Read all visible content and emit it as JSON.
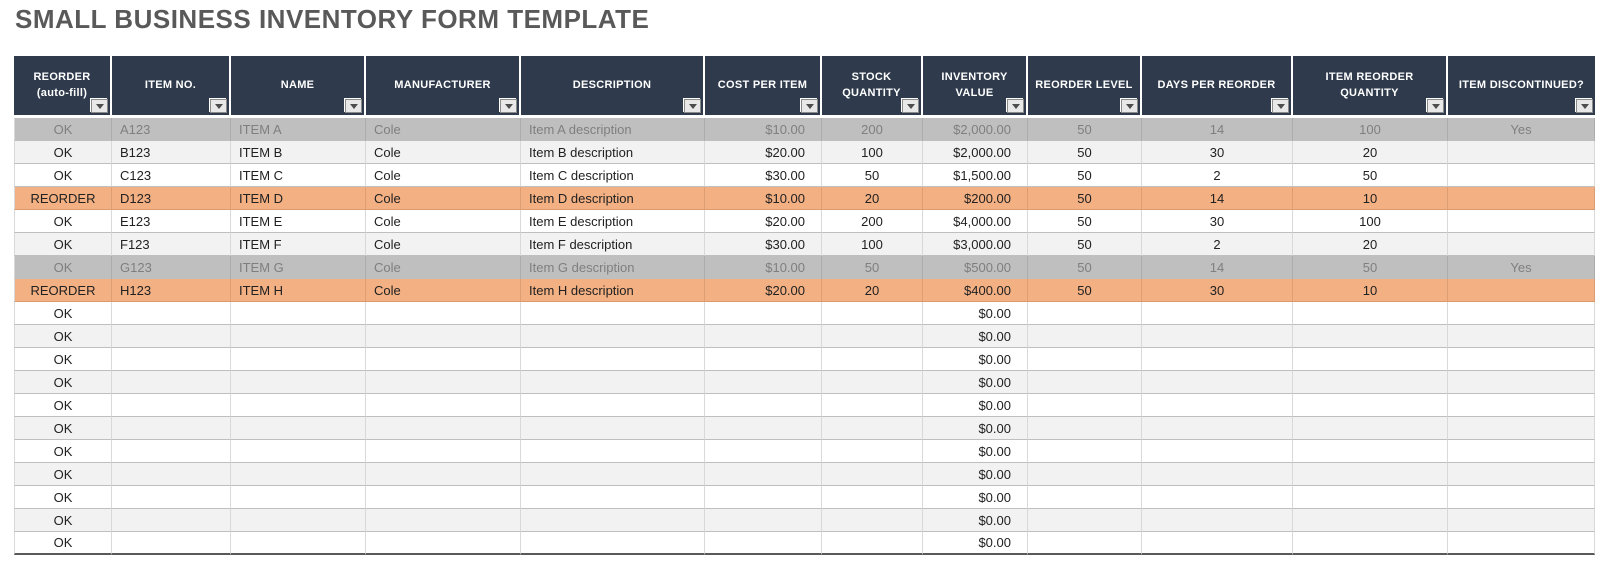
{
  "title": "SMALL BUSINESS INVENTORY FORM TEMPLATE",
  "colors": {
    "header_bg": "#2F3B4C",
    "header_text": "#FFFFFF",
    "row_alt": "#F2F2F2",
    "row_discontinued": "#BFBFBF",
    "text_discontinued": "#7F7F7F",
    "row_reorder": "#F3B083",
    "title_text": "#595959"
  },
  "icons": {
    "header_filter": "filter-dropdown-icon"
  },
  "table": {
    "columns": [
      {
        "key": "reorder",
        "label": "REORDER (auto-fill)"
      },
      {
        "key": "item_no",
        "label": "ITEM NO."
      },
      {
        "key": "name",
        "label": "NAME"
      },
      {
        "key": "manufacturer",
        "label": "MANUFACTURER"
      },
      {
        "key": "description",
        "label": "DESCRIPTION"
      },
      {
        "key": "cost_per_item",
        "label": "COST PER ITEM"
      },
      {
        "key": "stock_quantity",
        "label": "STOCK QUANTITY"
      },
      {
        "key": "inventory_value",
        "label": "INVENTORY VALUE"
      },
      {
        "key": "reorder_level",
        "label": "REORDER LEVEL"
      },
      {
        "key": "days_per_reorder",
        "label": "DAYS PER REORDER"
      },
      {
        "key": "item_reorder_quantity",
        "label": "ITEM REORDER QUANTITY"
      },
      {
        "key": "item_discontinued",
        "label": "ITEM DISCONTINUED?"
      }
    ],
    "rows": [
      {
        "state": "discontinued",
        "reorder": "OK",
        "item_no": "A123",
        "name": "ITEM A",
        "manufacturer": "Cole",
        "description": "Item A description",
        "cost_per_item": "$10.00",
        "stock_quantity": "200",
        "inventory_value": "$2,000.00",
        "reorder_level": "50",
        "days_per_reorder": "14",
        "item_reorder_quantity": "100",
        "item_discontinued": "Yes"
      },
      {
        "state": "normal",
        "reorder": "OK",
        "item_no": "B123",
        "name": "ITEM B",
        "manufacturer": "Cole",
        "description": "Item B description",
        "cost_per_item": "$20.00",
        "stock_quantity": "100",
        "inventory_value": "$2,000.00",
        "reorder_level": "50",
        "days_per_reorder": "30",
        "item_reorder_quantity": "20",
        "item_discontinued": ""
      },
      {
        "state": "normal",
        "reorder": "OK",
        "item_no": "C123",
        "name": "ITEM C",
        "manufacturer": "Cole",
        "description": "Item C description",
        "cost_per_item": "$30.00",
        "stock_quantity": "50",
        "inventory_value": "$1,500.00",
        "reorder_level": "50",
        "days_per_reorder": "2",
        "item_reorder_quantity": "50",
        "item_discontinued": ""
      },
      {
        "state": "reorder",
        "reorder": "REORDER",
        "item_no": "D123",
        "name": "ITEM D",
        "manufacturer": "Cole",
        "description": "Item D description",
        "cost_per_item": "$10.00",
        "stock_quantity": "20",
        "inventory_value": "$200.00",
        "reorder_level": "50",
        "days_per_reorder": "14",
        "item_reorder_quantity": "10",
        "item_discontinued": ""
      },
      {
        "state": "normal",
        "reorder": "OK",
        "item_no": "E123",
        "name": "ITEM E",
        "manufacturer": "Cole",
        "description": "Item E description",
        "cost_per_item": "$20.00",
        "stock_quantity": "200",
        "inventory_value": "$4,000.00",
        "reorder_level": "50",
        "days_per_reorder": "30",
        "item_reorder_quantity": "100",
        "item_discontinued": ""
      },
      {
        "state": "normal",
        "reorder": "OK",
        "item_no": "F123",
        "name": "ITEM F",
        "manufacturer": "Cole",
        "description": "Item F description",
        "cost_per_item": "$30.00",
        "stock_quantity": "100",
        "inventory_value": "$3,000.00",
        "reorder_level": "50",
        "days_per_reorder": "2",
        "item_reorder_quantity": "20",
        "item_discontinued": ""
      },
      {
        "state": "discontinued",
        "reorder": "OK",
        "item_no": "G123",
        "name": "ITEM G",
        "manufacturer": "Cole",
        "description": "Item G description",
        "cost_per_item": "$10.00",
        "stock_quantity": "50",
        "inventory_value": "$500.00",
        "reorder_level": "50",
        "days_per_reorder": "14",
        "item_reorder_quantity": "50",
        "item_discontinued": "Yes"
      },
      {
        "state": "reorder",
        "reorder": "REORDER",
        "item_no": "H123",
        "name": "ITEM H",
        "manufacturer": "Cole",
        "description": "Item H description",
        "cost_per_item": "$20.00",
        "stock_quantity": "20",
        "inventory_value": "$400.00",
        "reorder_level": "50",
        "days_per_reorder": "30",
        "item_reorder_quantity": "10",
        "item_discontinued": ""
      },
      {
        "state": "empty",
        "reorder": "OK",
        "item_no": "",
        "name": "",
        "manufacturer": "",
        "description": "",
        "cost_per_item": "",
        "stock_quantity": "",
        "inventory_value": "$0.00",
        "reorder_level": "",
        "days_per_reorder": "",
        "item_reorder_quantity": "",
        "item_discontinued": ""
      },
      {
        "state": "empty",
        "reorder": "OK",
        "item_no": "",
        "name": "",
        "manufacturer": "",
        "description": "",
        "cost_per_item": "",
        "stock_quantity": "",
        "inventory_value": "$0.00",
        "reorder_level": "",
        "days_per_reorder": "",
        "item_reorder_quantity": "",
        "item_discontinued": ""
      },
      {
        "state": "empty",
        "reorder": "OK",
        "item_no": "",
        "name": "",
        "manufacturer": "",
        "description": "",
        "cost_per_item": "",
        "stock_quantity": "",
        "inventory_value": "$0.00",
        "reorder_level": "",
        "days_per_reorder": "",
        "item_reorder_quantity": "",
        "item_discontinued": ""
      },
      {
        "state": "empty",
        "reorder": "OK",
        "item_no": "",
        "name": "",
        "manufacturer": "",
        "description": "",
        "cost_per_item": "",
        "stock_quantity": "",
        "inventory_value": "$0.00",
        "reorder_level": "",
        "days_per_reorder": "",
        "item_reorder_quantity": "",
        "item_discontinued": ""
      },
      {
        "state": "empty",
        "reorder": "OK",
        "item_no": "",
        "name": "",
        "manufacturer": "",
        "description": "",
        "cost_per_item": "",
        "stock_quantity": "",
        "inventory_value": "$0.00",
        "reorder_level": "",
        "days_per_reorder": "",
        "item_reorder_quantity": "",
        "item_discontinued": ""
      },
      {
        "state": "empty",
        "reorder": "OK",
        "item_no": "",
        "name": "",
        "manufacturer": "",
        "description": "",
        "cost_per_item": "",
        "stock_quantity": "",
        "inventory_value": "$0.00",
        "reorder_level": "",
        "days_per_reorder": "",
        "item_reorder_quantity": "",
        "item_discontinued": ""
      },
      {
        "state": "empty",
        "reorder": "OK",
        "item_no": "",
        "name": "",
        "manufacturer": "",
        "description": "",
        "cost_per_item": "",
        "stock_quantity": "",
        "inventory_value": "$0.00",
        "reorder_level": "",
        "days_per_reorder": "",
        "item_reorder_quantity": "",
        "item_discontinued": ""
      },
      {
        "state": "empty",
        "reorder": "OK",
        "item_no": "",
        "name": "",
        "manufacturer": "",
        "description": "",
        "cost_per_item": "",
        "stock_quantity": "",
        "inventory_value": "$0.00",
        "reorder_level": "",
        "days_per_reorder": "",
        "item_reorder_quantity": "",
        "item_discontinued": ""
      },
      {
        "state": "empty",
        "reorder": "OK",
        "item_no": "",
        "name": "",
        "manufacturer": "",
        "description": "",
        "cost_per_item": "",
        "stock_quantity": "",
        "inventory_value": "$0.00",
        "reorder_level": "",
        "days_per_reorder": "",
        "item_reorder_quantity": "",
        "item_discontinued": ""
      },
      {
        "state": "empty",
        "reorder": "OK",
        "item_no": "",
        "name": "",
        "manufacturer": "",
        "description": "",
        "cost_per_item": "",
        "stock_quantity": "",
        "inventory_value": "$0.00",
        "reorder_level": "",
        "days_per_reorder": "",
        "item_reorder_quantity": "",
        "item_discontinued": ""
      },
      {
        "state": "empty",
        "reorder": "OK",
        "item_no": "",
        "name": "",
        "manufacturer": "",
        "description": "",
        "cost_per_item": "",
        "stock_quantity": "",
        "inventory_value": "$0.00",
        "reorder_level": "",
        "days_per_reorder": "",
        "item_reorder_quantity": "",
        "item_discontinued": ""
      }
    ]
  }
}
